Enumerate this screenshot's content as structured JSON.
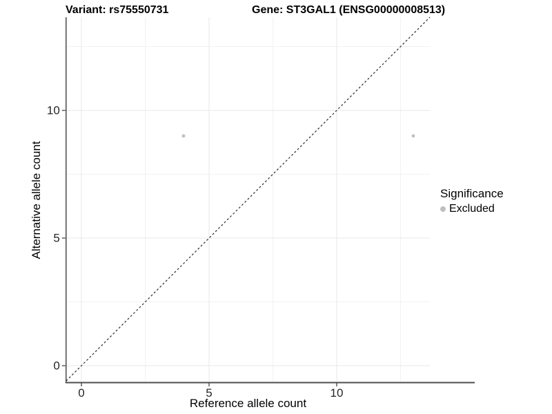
{
  "chart_data": {
    "type": "scatter",
    "titles": {
      "variant": "Variant: rs75550731",
      "gene": "Gene: ST3GAL1 (ENSG00000008513)"
    },
    "xlabel": "Reference allele count",
    "ylabel": "Alternative allele count",
    "x_ticks": {
      "major": [
        0,
        5,
        10
      ],
      "minor": [
        2.5,
        7.5,
        12.5
      ]
    },
    "y_ticks": {
      "major": [
        0,
        5,
        10
      ],
      "minor": [
        2.5,
        7.5,
        12.5
      ]
    },
    "xlim": [
      -0.6,
      13.65
    ],
    "ylim": [
      -0.65,
      13.65
    ],
    "grid": "major and minor gridlines, very light gray, white panel background",
    "series": [
      {
        "name": "Excluded",
        "marker": "circle",
        "color": "#bfbfbf",
        "points": [
          [
            4,
            9
          ],
          [
            13,
            9
          ]
        ]
      }
    ],
    "reference_line": {
      "type": "identity",
      "equation": "y = x",
      "style": "dashed",
      "color": "#2a2a2a"
    },
    "legend": {
      "title": "Significance",
      "position": "right",
      "items": [
        {
          "label": "Excluded",
          "color": "#bfbfbf"
        }
      ]
    },
    "colors": {
      "point": "#bfbfbf",
      "grid_major": "#e7e7e7",
      "grid_minor": "#f2f2f2",
      "axis_line_left": "#1a1a1a",
      "axis_line_bottom": "#4d4d4d",
      "tick_label": "#262626"
    }
  }
}
